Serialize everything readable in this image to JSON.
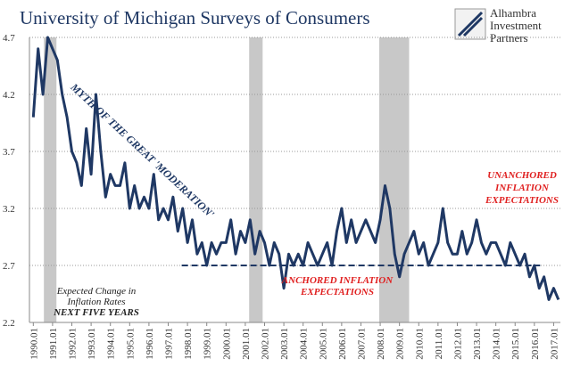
{
  "chart_data": {
    "type": "line",
    "title": "University of Michigan Surveys of Consumers",
    "logo": [
      "Alhambra",
      "Investment",
      "Partners"
    ],
    "annotations": {
      "myth": "MYTH OF THE GREAT 'MODERATION'",
      "anchored": [
        "ANCHORED INFLATION",
        "EXPECTATIONS"
      ],
      "unanchored": [
        "UNANCHORED",
        "INFLATION",
        "EXPECTATIONS"
      ],
      "series_note": [
        "Expected Change in",
        "Inflation Rates",
        "NEXT FIVE YEARS"
      ]
    },
    "x": [
      1990.0,
      1990.25,
      1990.5,
      1990.75,
      1991.0,
      1991.25,
      1991.5,
      1991.75,
      1992.0,
      1992.25,
      1992.5,
      1992.75,
      1993.0,
      1993.25,
      1993.5,
      1993.75,
      1994.0,
      1994.25,
      1994.5,
      1994.75,
      1995.0,
      1995.25,
      1995.5,
      1995.75,
      1996.0,
      1996.25,
      1996.5,
      1996.75,
      1997.0,
      1997.25,
      1997.5,
      1997.75,
      1998.0,
      1998.25,
      1998.5,
      1998.75,
      1999.0,
      1999.25,
      1999.5,
      1999.75,
      2000.0,
      2000.25,
      2000.5,
      2000.75,
      2001.0,
      2001.25,
      2001.5,
      2001.75,
      2002.0,
      2002.25,
      2002.5,
      2002.75,
      2003.0,
      2003.25,
      2003.5,
      2003.75,
      2004.0,
      2004.25,
      2004.5,
      2004.75,
      2005.0,
      2005.25,
      2005.5,
      2005.75,
      2006.0,
      2006.25,
      2006.5,
      2006.75,
      2007.0,
      2007.25,
      2007.5,
      2007.75,
      2008.0,
      2008.25,
      2008.5,
      2008.75,
      2009.0,
      2009.25,
      2009.5,
      2009.75,
      2010.0,
      2010.25,
      2010.5,
      2010.75,
      2011.0,
      2011.25,
      2011.5,
      2011.75,
      2012.0,
      2012.25,
      2012.5,
      2012.75,
      2013.0,
      2013.25,
      2013.5,
      2013.75,
      2014.0,
      2014.25,
      2014.5,
      2014.75,
      2015.0,
      2015.25,
      2015.5,
      2015.75,
      2016.0,
      2016.25,
      2016.5,
      2016.75,
      2017.0,
      2017.25
    ],
    "series": [
      {
        "name": "Expected Change in Inflation Rates",
        "color": "#1f3864",
        "values": [
          4.0,
          4.6,
          4.2,
          4.7,
          4.6,
          4.5,
          4.2,
          4.0,
          3.7,
          3.6,
          3.4,
          3.9,
          3.5,
          4.2,
          3.7,
          3.3,
          3.5,
          3.4,
          3.4,
          3.6,
          3.2,
          3.4,
          3.2,
          3.3,
          3.2,
          3.5,
          3.1,
          3.2,
          3.1,
          3.3,
          3.0,
          3.2,
          2.9,
          3.1,
          2.8,
          2.9,
          2.7,
          2.9,
          2.8,
          2.9,
          2.9,
          3.1,
          2.8,
          3.0,
          2.9,
          3.1,
          2.8,
          3.0,
          2.9,
          2.7,
          2.9,
          2.8,
          2.5,
          2.8,
          2.7,
          2.8,
          2.7,
          2.9,
          2.8,
          2.7,
          2.8,
          2.9,
          2.7,
          3.0,
          3.2,
          2.9,
          3.1,
          2.9,
          3.0,
          3.1,
          3.0,
          2.9,
          3.1,
          3.4,
          3.2,
          2.8,
          2.6,
          2.8,
          2.9,
          3.0,
          2.8,
          2.9,
          2.7,
          2.8,
          2.9,
          3.2,
          2.9,
          2.8,
          2.8,
          3.0,
          2.8,
          2.9,
          3.1,
          2.9,
          2.8,
          2.9,
          2.9,
          2.8,
          2.7,
          2.9,
          2.8,
          2.7,
          2.8,
          2.6,
          2.7,
          2.5,
          2.6,
          2.4,
          2.5,
          2.4
        ]
      }
    ],
    "shaded_periods": [
      [
        1990.55,
        1991.2
      ],
      [
        2001.2,
        2001.9
      ],
      [
        2007.95,
        2009.5
      ]
    ],
    "shade_color": "#c8c8c8",
    "reference_line": {
      "value": 2.7,
      "x": [
        1997.7,
        2016.3
      ]
    },
    "xlim": [
      1989.8,
      2017.35
    ],
    "ylim": [
      2.2,
      4.7
    ],
    "yticks": [
      2.2,
      2.7,
      3.2,
      3.7,
      4.2,
      4.7
    ],
    "xticks": [
      {
        "value": 1990,
        "label": "1990.01"
      },
      {
        "value": 1991,
        "label": "1991.01"
      },
      {
        "value": 1992,
        "label": "1992.01"
      },
      {
        "value": 1993,
        "label": "1993.01"
      },
      {
        "value": 1994,
        "label": "1994.01"
      },
      {
        "value": 1995,
        "label": "1995.01"
      },
      {
        "value": 1996,
        "label": "1996.01"
      },
      {
        "value": 1997,
        "label": "1997.01"
      },
      {
        "value": 1998,
        "label": "1998.01"
      },
      {
        "value": 1999,
        "label": "1999.01"
      },
      {
        "value": 2000,
        "label": "2000.01"
      },
      {
        "value": 2001,
        "label": "2001.01"
      },
      {
        "value": 2002,
        "label": "2002.01"
      },
      {
        "value": 2003,
        "label": "2003.01"
      },
      {
        "value": 2004,
        "label": "2004.01"
      },
      {
        "value": 2005,
        "label": "2005.01"
      },
      {
        "value": 2006,
        "label": "2006.01"
      },
      {
        "value": 2007,
        "label": "2007.01"
      },
      {
        "value": 2008,
        "label": "2008.01"
      },
      {
        "value": 2009,
        "label": "2009.01"
      },
      {
        "value": 2010,
        "label": "2010.01"
      },
      {
        "value": 2011,
        "label": "2011.01"
      },
      {
        "value": 2012,
        "label": "2012.01"
      },
      {
        "value": 2013,
        "label": "2013.01"
      },
      {
        "value": 2014,
        "label": "2014.01"
      },
      {
        "value": 2015,
        "label": "2015.01"
      },
      {
        "value": 2016,
        "label": "2016.01"
      },
      {
        "value": 2017,
        "label": "2017.01"
      }
    ],
    "grid": true
  }
}
